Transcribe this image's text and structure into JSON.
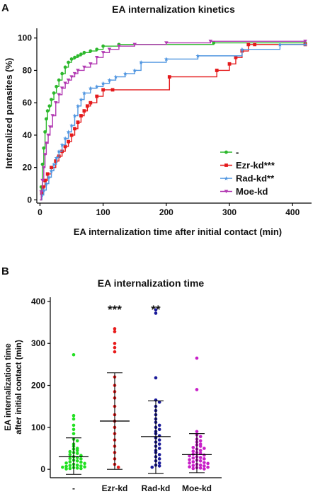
{
  "chart_data": [
    {
      "type": "line",
      "panel": "A",
      "title": "EA internalization kinetics",
      "xlabel": "EA internalization time after initial contact (min)",
      "ylabel": "Internalized parasites (%)",
      "xlim": [
        -5,
        430
      ],
      "ylim": [
        -2,
        106
      ],
      "xticks": [
        "0",
        "100",
        "200",
        "300",
        "400"
      ],
      "yticks": [
        "0",
        "20",
        "40",
        "60",
        "80",
        "100"
      ],
      "legend_position": "bottom-right",
      "series": [
        {
          "name": "-",
          "color": "#2db82d",
          "x": [
            0,
            2,
            4,
            6,
            8,
            10,
            12,
            15,
            18,
            22,
            26,
            30,
            35,
            40,
            45,
            50,
            55,
            60,
            65,
            70,
            80,
            90,
            100,
            125,
            275,
            420
          ],
          "y": [
            0,
            8,
            22,
            32,
            42,
            50,
            55,
            58,
            62,
            66,
            70,
            74,
            78,
            82,
            85,
            87,
            88,
            89,
            90,
            91,
            92,
            93,
            95,
            96,
            97,
            97
          ]
        },
        {
          "name": "Ezr-kd***",
          "color": "#e41a1c",
          "x": [
            0,
            3,
            5,
            8,
            12,
            18,
            25,
            30,
            35,
            40,
            45,
            50,
            55,
            60,
            65,
            70,
            75,
            80,
            90,
            100,
            115,
            205,
            280,
            300,
            310,
            320,
            330,
            340,
            420
          ],
          "y": [
            0,
            4,
            8,
            12,
            16,
            20,
            24,
            27,
            30,
            33,
            36,
            40,
            44,
            48,
            52,
            55,
            58,
            60,
            64,
            68,
            68,
            76,
            80,
            84,
            88,
            92,
            96,
            96,
            96
          ]
        },
        {
          "name": "Rad-kd**",
          "color": "#4f95e0",
          "x": [
            0,
            3,
            6,
            10,
            14,
            18,
            22,
            26,
            30,
            35,
            40,
            45,
            50,
            55,
            60,
            65,
            70,
            80,
            90,
            100,
            110,
            120,
            135,
            150,
            160,
            200,
            250,
            320,
            380,
            420
          ],
          "y": [
            0,
            3,
            6,
            10,
            14,
            18,
            22,
            26,
            30,
            34,
            38,
            42,
            46,
            52,
            58,
            62,
            66,
            69,
            70,
            72,
            74,
            76,
            78,
            80,
            85,
            87,
            89,
            93,
            96,
            96
          ]
        },
        {
          "name": "Moe-kd",
          "color": "#b23ab2",
          "x": [
            0,
            2,
            4,
            6,
            8,
            10,
            13,
            16,
            20,
            25,
            30,
            35,
            40,
            45,
            50,
            55,
            60,
            70,
            80,
            90,
            100,
            110,
            125,
            150,
            200,
            270,
            420
          ],
          "y": [
            0,
            5,
            12,
            20,
            28,
            35,
            40,
            45,
            52,
            60,
            65,
            69,
            72,
            74,
            76,
            78,
            80,
            82,
            84,
            88,
            91,
            93,
            95,
            96,
            97,
            98,
            98
          ]
        }
      ]
    },
    {
      "type": "scatter",
      "panel": "B",
      "title": "EA internalization time",
      "ylabel_line1": "EA internalization time",
      "ylabel_line2": "after initial contact (min)",
      "ylim": [
        -20,
        410
      ],
      "yticks": [
        "0",
        "100",
        "200",
        "300",
        "400"
      ],
      "categories": [
        "-",
        "Ezr-kd",
        "Rad-kd",
        "Moe-kd"
      ],
      "significance": [
        "",
        "***",
        "**",
        ""
      ],
      "groups": [
        {
          "name": "-",
          "color": "#22e022",
          "mean": 30,
          "sd_low": -12,
          "sd_high": 75,
          "values": [
            273,
            128,
            120,
            105,
            95,
            85,
            72,
            68,
            60,
            55,
            50,
            48,
            45,
            42,
            40,
            38,
            35,
            33,
            30,
            28,
            26,
            25,
            22,
            20,
            18,
            17,
            15,
            14,
            12,
            10,
            9,
            8,
            7,
            6,
            5,
            4,
            3,
            2,
            2,
            1
          ]
        },
        {
          "name": "Ezr-kd",
          "color": "#e81c1c",
          "mean": 115,
          "sd_low": 0,
          "sd_high": 230,
          "values": [
            335,
            328,
            300,
            290,
            280,
            220,
            200,
            185,
            170,
            150,
            130,
            115,
            100,
            85,
            70,
            55,
            40,
            25,
            12,
            5
          ]
        },
        {
          "name": "Rad-kd",
          "color": "#1a1a99",
          "mean": 78,
          "sd_low": -10,
          "sd_high": 163,
          "values": [
            380,
            372,
            218,
            165,
            160,
            150,
            140,
            130,
            120,
            112,
            105,
            100,
            95,
            90,
            85,
            80,
            75,
            70,
            65,
            60,
            55,
            50,
            45,
            40,
            35,
            30,
            25,
            20,
            15,
            10,
            8,
            5
          ]
        },
        {
          "name": "Moe-kd",
          "color": "#c81fc8",
          "mean": 35,
          "sd_low": -8,
          "sd_high": 85,
          "values": [
            265,
            190,
            90,
            82,
            78,
            72,
            68,
            65,
            60,
            58,
            55,
            52,
            50,
            48,
            45,
            43,
            40,
            38,
            36,
            34,
            32,
            30,
            28,
            27,
            25,
            23,
            22,
            20,
            18,
            16,
            15,
            14,
            12,
            10,
            9,
            8,
            6,
            5,
            4,
            3,
            2,
            1
          ]
        }
      ]
    }
  ],
  "labels": {
    "panel_a": "A",
    "panel_b": "B"
  }
}
